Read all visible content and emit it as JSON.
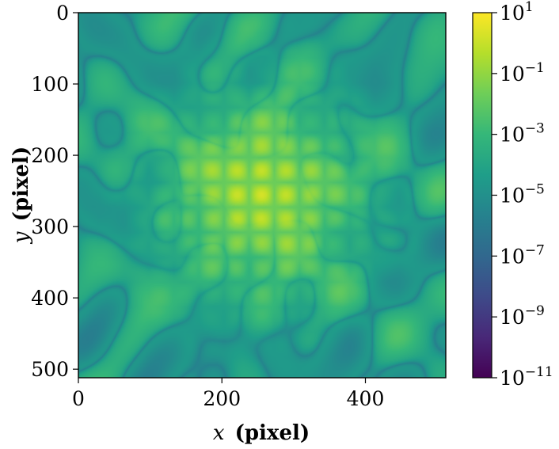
{
  "chart_data": {
    "type": "heatmap",
    "title": "",
    "xlabel": {
      "var": "x",
      "unit": "(pixel)"
    },
    "ylabel": {
      "var": "y",
      "unit": "(pixel)"
    },
    "xlim": [
      0,
      512
    ],
    "ylim": [
      512,
      0
    ],
    "x_ticks": [
      {
        "value": 0,
        "label": "0"
      },
      {
        "value": 200,
        "label": "200"
      },
      {
        "value": 400,
        "label": "400"
      }
    ],
    "y_ticks": [
      {
        "value": 0,
        "label": "0"
      },
      {
        "value": 100,
        "label": "100"
      },
      {
        "value": 200,
        "label": "200"
      },
      {
        "value": 300,
        "label": "300"
      },
      {
        "value": 400,
        "label": "400"
      },
      {
        "value": 500,
        "label": "500"
      }
    ],
    "colorbar": {
      "scale": "log",
      "colormap": "viridis",
      "range_exponent": [
        -11,
        1
      ],
      "ticks": [
        {
          "exponent": 1,
          "base": "10",
          "exp": "1"
        },
        {
          "exponent": -1,
          "base": "10",
          "exp": "−1"
        },
        {
          "exponent": -3,
          "base": "10",
          "exp": "−3"
        },
        {
          "exponent": -5,
          "base": "10",
          "exp": "−5"
        },
        {
          "exponent": -7,
          "base": "10",
          "exp": "−7"
        },
        {
          "exponent": -9,
          "base": "10",
          "exp": "−9"
        },
        {
          "exponent": -11,
          "base": "10",
          "exp": "−11"
        }
      ]
    },
    "image_description_values": {
      "center": [
        255,
        255
      ],
      "peak_value_exponent": 0.5,
      "background_value_exponent": -4.2,
      "ring_period_pixels": 35
    }
  },
  "colors": {
    "viridis": [
      "#440154",
      "#482878",
      "#3e4a89",
      "#31688e",
      "#26828e",
      "#1f9e89",
      "#35b779",
      "#6ece58",
      "#b5de2b",
      "#fde725"
    ]
  }
}
